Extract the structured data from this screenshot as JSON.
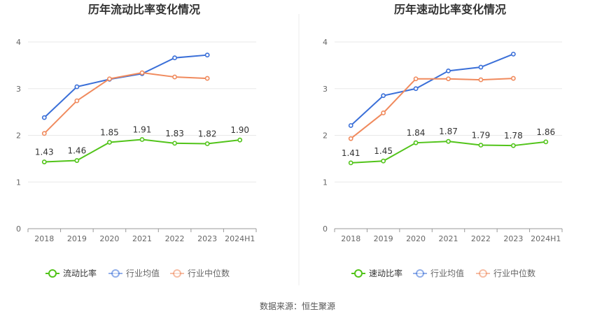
{
  "source_text": "数据来源：恒生聚源",
  "colors": {
    "primary": "#52c41a",
    "avg": "#3a6fd8",
    "median": "#f08a5d",
    "grid": "#e8e8e8",
    "axis": "#666666",
    "title": "#333333"
  },
  "chart_data": [
    {
      "type": "line",
      "title": "历年流动比率变化情况",
      "categories": [
        "2018",
        "2019",
        "2020",
        "2021",
        "2022",
        "2023",
        "2024H1"
      ],
      "ylim": [
        0,
        4
      ],
      "yticks": [
        0,
        1,
        2,
        3,
        4
      ],
      "grid": true,
      "legend_position": "bottom",
      "series": [
        {
          "name": "流动比率",
          "values": [
            1.43,
            1.46,
            1.85,
            1.91,
            1.83,
            1.82,
            1.9
          ],
          "labels": [
            "1.43",
            "1.46",
            "1.85",
            "1.91",
            "1.83",
            "1.82",
            "1.90"
          ],
          "color": "#52c41a"
        },
        {
          "name": "行业均值",
          "values": [
            2.38,
            3.04,
            3.2,
            3.32,
            3.66,
            3.72,
            null
          ],
          "color": "#3a6fd8"
        },
        {
          "name": "行业中位数",
          "values": [
            2.04,
            2.74,
            3.21,
            3.34,
            3.25,
            3.22,
            null
          ],
          "color": "#f08a5d"
        }
      ]
    },
    {
      "type": "line",
      "title": "历年速动比率变化情况",
      "categories": [
        "2018",
        "2019",
        "2020",
        "2021",
        "2022",
        "2023",
        "2024H1"
      ],
      "ylim": [
        0,
        4
      ],
      "yticks": [
        0,
        1,
        2,
        3,
        4
      ],
      "grid": true,
      "legend_position": "bottom",
      "series": [
        {
          "name": "速动比率",
          "values": [
            1.41,
            1.45,
            1.84,
            1.87,
            1.79,
            1.78,
            1.86
          ],
          "labels": [
            "1.41",
            "1.45",
            "1.84",
            "1.87",
            "1.79",
            "1.78",
            "1.86"
          ],
          "color": "#52c41a"
        },
        {
          "name": "行业均值",
          "values": [
            2.21,
            2.85,
            3.0,
            3.38,
            3.46,
            3.74,
            null
          ],
          "color": "#3a6fd8"
        },
        {
          "name": "行业中位数",
          "values": [
            1.93,
            2.48,
            3.21,
            3.21,
            3.19,
            3.22,
            null
          ],
          "color": "#f08a5d"
        }
      ]
    }
  ]
}
